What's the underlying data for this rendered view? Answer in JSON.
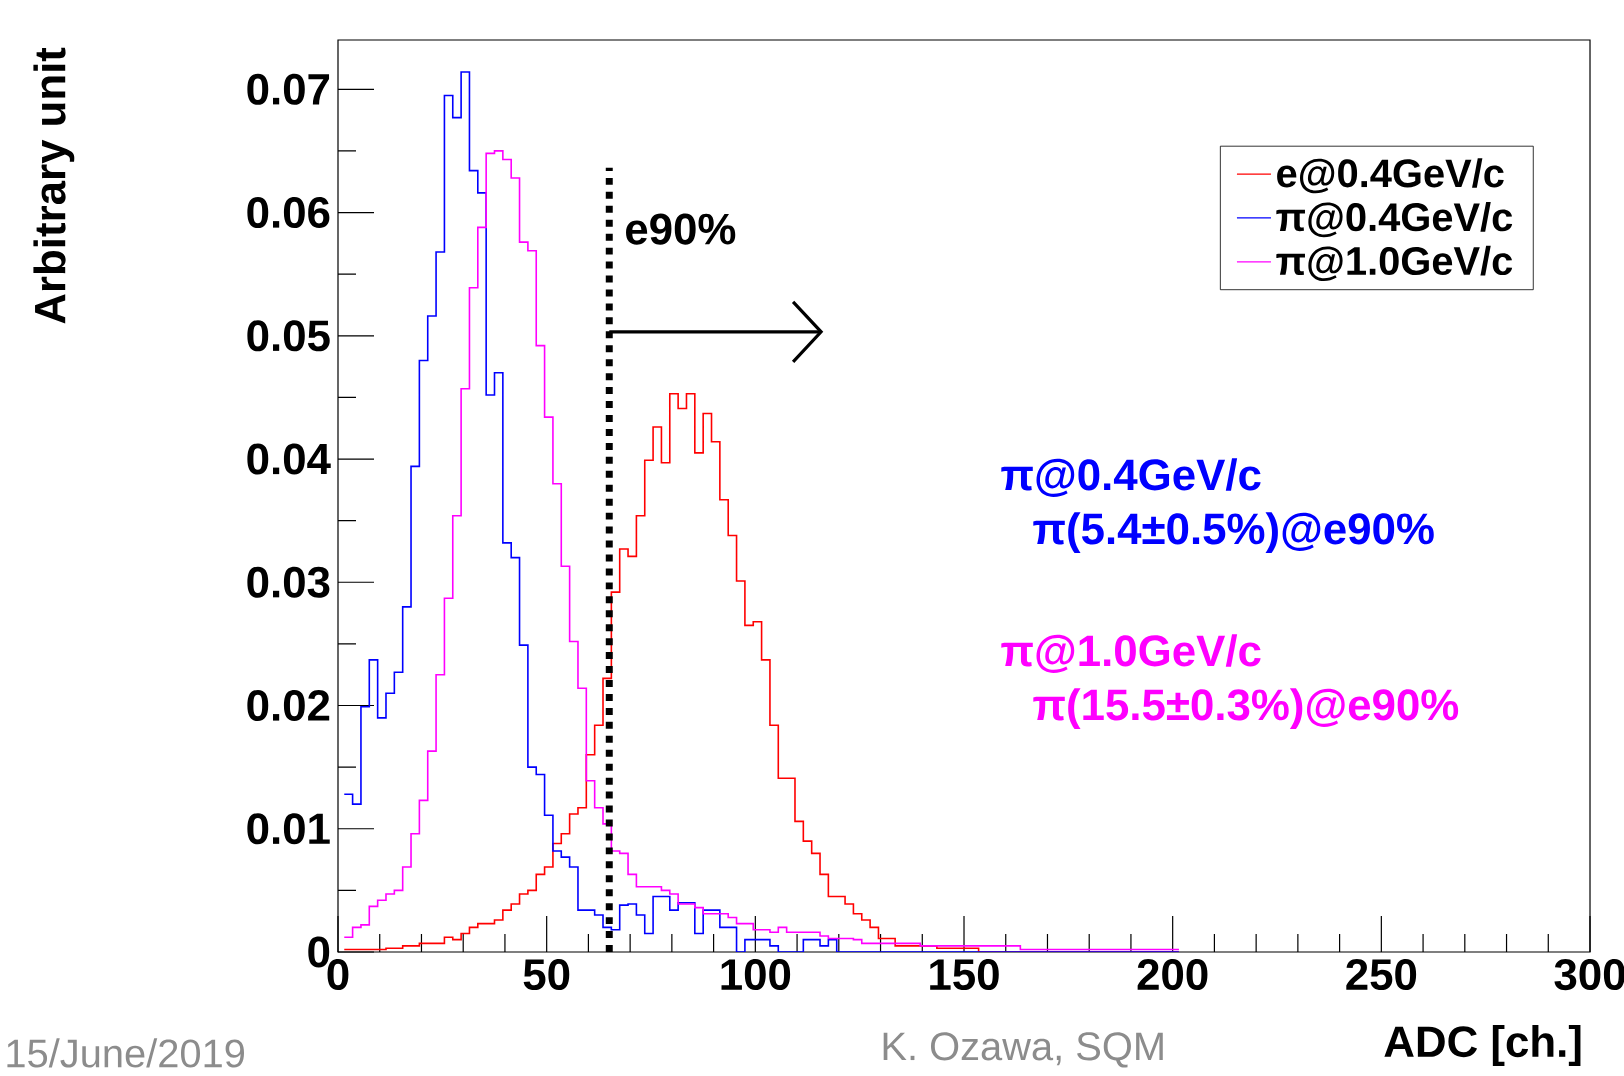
{
  "chart_data": {
    "type": "histogram",
    "xlabel": "ADC [ch.]",
    "ylabel": "Arbitrary unit",
    "bins": [
      1.5,
      3.5,
      5.5,
      7.5,
      9.5,
      11.5,
      13.5,
      15.5,
      17.5,
      19.5,
      21.5,
      23.5,
      25.5,
      27.5,
      29.5,
      31.5,
      33.5,
      35.5,
      37.5,
      39.5,
      41.5,
      43.5,
      45.5,
      47.5,
      49.5,
      51.5,
      53.5,
      55.5,
      57.5,
      59.5,
      61.5,
      63.5,
      65.5,
      67.5,
      69.5,
      71.5,
      73.5,
      75.5,
      77.5,
      79.5,
      81.5,
      83.5,
      85.5,
      87.5,
      89.5,
      91.5,
      93.5,
      95.5,
      97.5,
      99.5,
      101.5,
      103.5,
      105.5,
      107.5,
      109.5,
      111.5,
      113.5,
      115.5,
      117.5,
      119.5,
      121.5,
      123.5,
      125.5,
      127.5,
      129.5,
      131.5,
      133.5,
      135.5,
      137.5,
      139.5,
      141.5,
      143.5,
      145.5,
      147.5,
      149.5,
      151.5,
      153.5,
      155.5,
      157.5,
      159.5,
      161.5,
      163.5,
      165.5,
      167.5,
      169.5,
      171.5,
      173.5,
      175.5,
      177.5,
      179.5,
      181.5,
      183.5,
      185.5,
      187.5,
      189.5,
      191.5,
      193.5,
      195.5,
      197.5,
      199.5,
      201.5
    ],
    "series": [
      {
        "name": "e@0.4GeV/c",
        "color": "#ff0000",
        "values": [
          0.0002,
          0.0002,
          0.0002,
          0.0002,
          0.0002,
          0.0003,
          0.0003,
          0.0005,
          0.0005,
          0.0007,
          0.0007,
          0.0007,
          0.0012,
          0.001,
          0.0015,
          0.002,
          0.0023,
          0.0023,
          0.0026,
          0.0034,
          0.0039,
          0.0047,
          0.005,
          0.0063,
          0.0069,
          0.0088,
          0.0096,
          0.0112,
          0.0117,
          0.016,
          0.0184,
          0.0222,
          0.0292,
          0.0327,
          0.0321,
          0.0354,
          0.0399,
          0.0426,
          0.0397,
          0.0453,
          0.0441,
          0.0453,
          0.0405,
          0.0437,
          0.0414,
          0.0367,
          0.0338,
          0.0301,
          0.0265,
          0.0268,
          0.0237,
          0.0184,
          0.0141,
          0.0141,
          0.0106,
          0.009,
          0.008,
          0.0063,
          0.0045,
          0.0045,
          0.0039,
          0.0031,
          0.0026,
          0.002,
          0.0011,
          0.0011,
          0.0005,
          0.0005,
          0.0005,
          0.0005,
          0.0005,
          0.0003,
          0.0003,
          0.0003,
          0.0003,
          0.0003,
          0,
          0,
          0,
          0,
          0,
          0,
          0,
          0,
          0,
          0,
          0,
          0,
          0,
          0,
          0,
          0,
          0,
          0,
          0,
          0,
          0,
          0,
          0,
          0
        ]
      },
      {
        "name": "π@0.4GeV/c",
        "color": "#0000ff",
        "values": [
          0.0128,
          0.012,
          0.0199,
          0.0237,
          0.019,
          0.021,
          0.0227,
          0.028,
          0.0394,
          0.048,
          0.0516,
          0.0568,
          0.0695,
          0.0677,
          0.0714,
          0.0634,
          0.0616,
          0.0452,
          0.047,
          0.0332,
          0.032,
          0.0249,
          0.015,
          0.0144,
          0.0111,
          0.0082,
          0.0077,
          0.0069,
          0.0034,
          0.0034,
          0.003,
          0.002,
          0.0018,
          0.0038,
          0.0039,
          0.003,
          0.0015,
          0.0045,
          0.0045,
          0.0034,
          0.004,
          0.004,
          0.0015,
          0.0034,
          0.0034,
          0.002,
          0.002,
          0,
          0.001,
          0.001,
          0.001,
          0.0005,
          0,
          0,
          0,
          0.001,
          0.001,
          0.0005,
          0.001,
          0,
          0,
          0,
          0,
          0,
          0,
          0,
          0,
          0,
          0,
          0,
          0,
          0,
          0,
          0,
          0,
          0,
          0,
          0,
          0,
          0,
          0,
          0,
          0,
          0,
          0,
          0,
          0,
          0,
          0,
          0,
          0,
          0,
          0,
          0,
          0,
          0,
          0,
          0,
          0,
          0
        ]
      },
      {
        "name": "π@1.0GeV/c",
        "color": "#ff00ff",
        "values": [
          0.0012,
          0.002,
          0.0022,
          0.0037,
          0.0042,
          0.0047,
          0.005,
          0.0069,
          0.0096,
          0.0123,
          0.0163,
          0.0225,
          0.0287,
          0.0354,
          0.0457,
          0.0539,
          0.0588,
          0.0648,
          0.065,
          0.0643,
          0.0628,
          0.0576,
          0.0569,
          0.0492,
          0.0434,
          0.038,
          0.0313,
          0.0252,
          0.0214,
          0.0139,
          0.0117,
          0.0104,
          0.0082,
          0.008,
          0.0063,
          0.0053,
          0.0053,
          0.0053,
          0.005,
          0.0047,
          0.0039,
          0.0039,
          0.0036,
          0.0031,
          0.0031,
          0.0031,
          0.0028,
          0.0023,
          0.0023,
          0.0018,
          0.0018,
          0.0016,
          0.002,
          0.0016,
          0.0016,
          0.0016,
          0.0016,
          0.0013,
          0.0011,
          0.0011,
          0.0011,
          0.001,
          0.0007,
          0.0007,
          0.0007,
          0.0007,
          0.0007,
          0.0007,
          0.0007,
          0.0005,
          0.0005,
          0.0005,
          0.0005,
          0.0005,
          0.0005,
          0.0005,
          0.0005,
          0.0005,
          0.0005,
          0.0005,
          0.0005,
          0.0002,
          0.0002,
          0.0002,
          0.0002,
          0.0002,
          0.0002,
          0.0002,
          0.0002,
          0.0002,
          0.0002,
          0.0002,
          0.0002,
          0.0002,
          0.0002,
          0.0002,
          0.0002,
          0.0002,
          0.0002,
          0.0002
        ]
      }
    ],
    "xlim": [
      0,
      300
    ],
    "xticks": [
      0,
      50,
      100,
      150,
      200,
      250,
      300
    ],
    "ylim": [
      0,
      0.074
    ],
    "yticks": [
      0,
      0.01,
      0.02,
      0.03,
      0.04,
      0.05,
      0.06,
      0.07
    ],
    "legend": "top right",
    "ref_lines": [
      {
        "axis": "x",
        "value": 65,
        "label": "e90%",
        "color": "#000000",
        "line_style": "dotted"
      }
    ],
    "annotations": [
      "π@0.4GeV/c",
      "π(5.4±0.5%)@e90%",
      "π@1.0GeV/c",
      "π(15.5±0.3%)@e90%",
      "15/June/2019",
      "K. Ozawa, SQM"
    ]
  }
}
